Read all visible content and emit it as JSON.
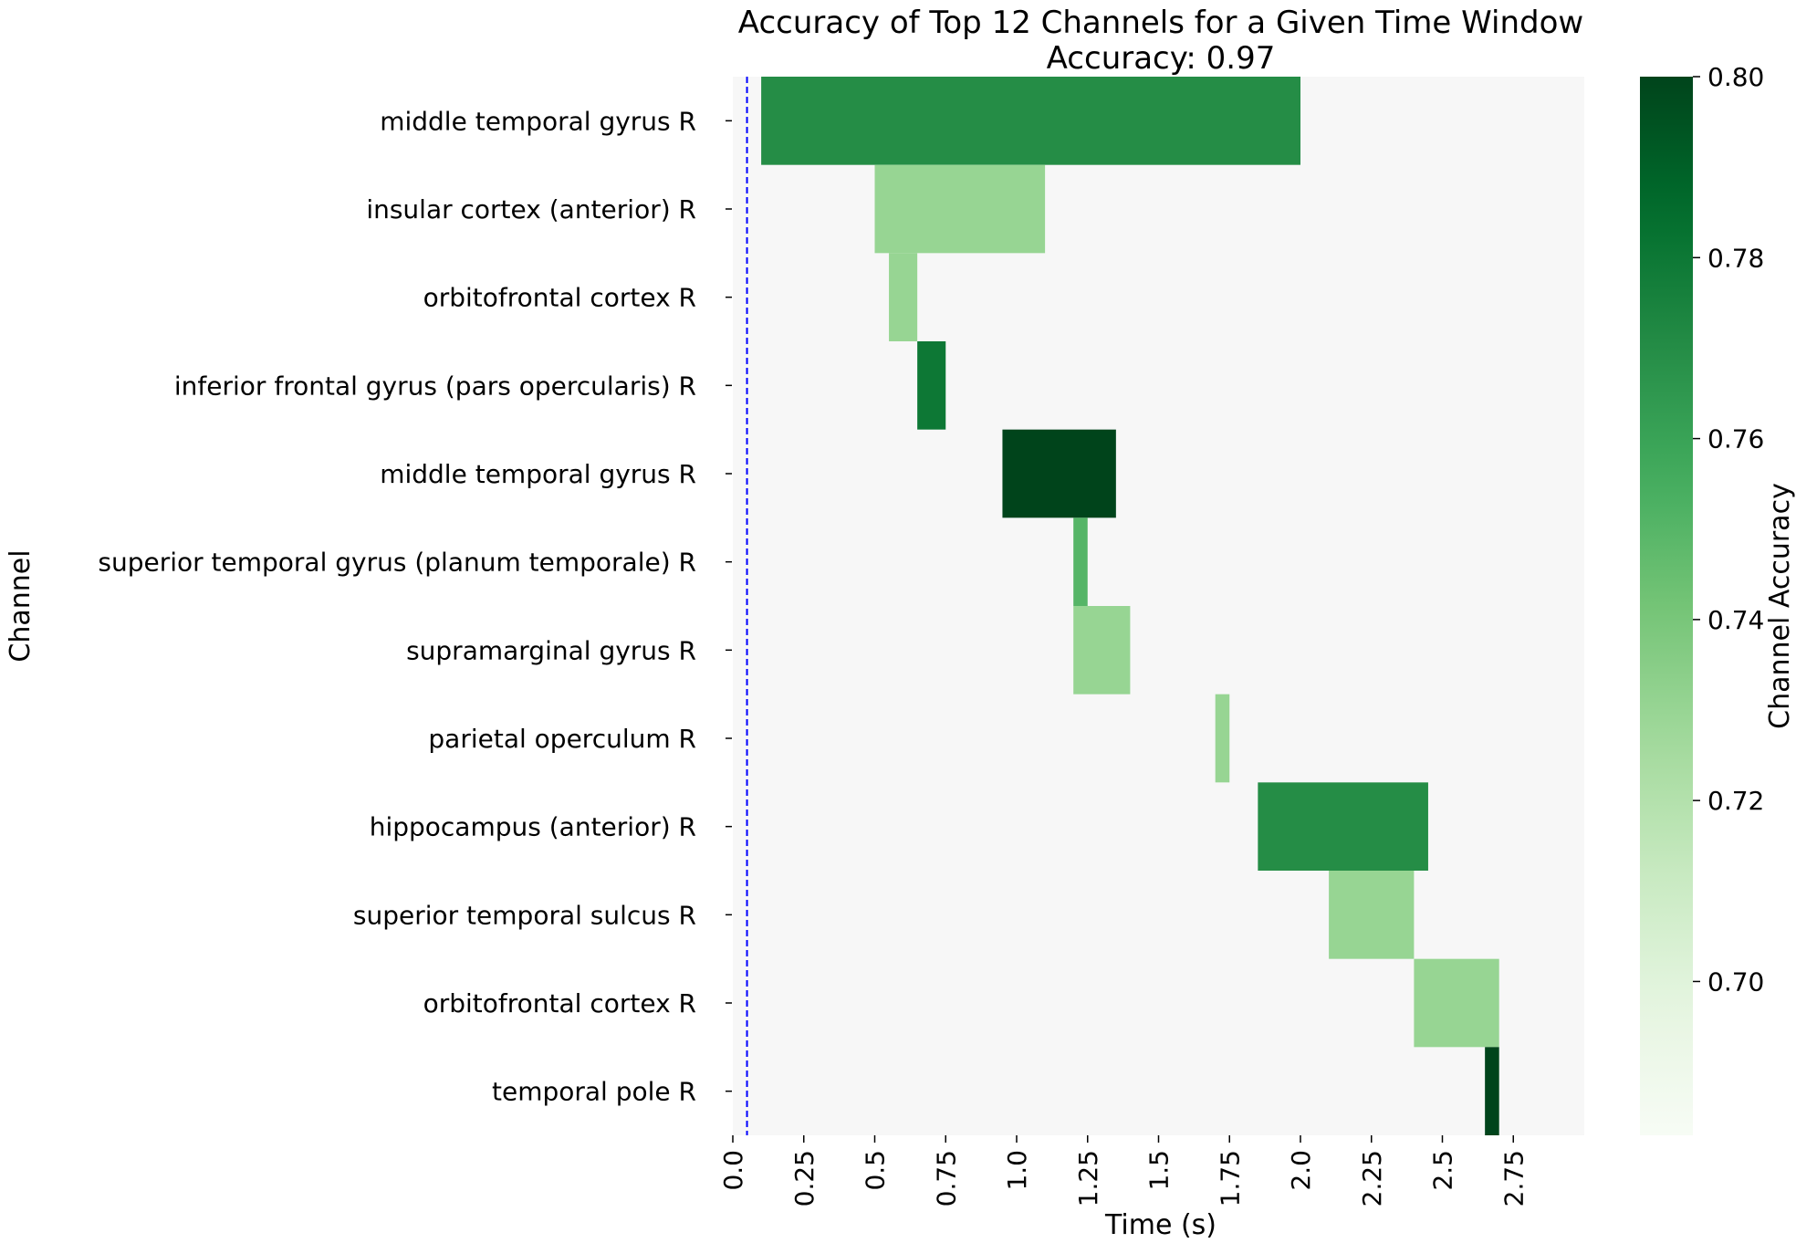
{
  "chart_data": {
    "type": "heatmap",
    "title": "Accuracy of Top 12 Channels for a Given Time Window",
    "subtitle": "Accuracy: 0.97",
    "xlabel": "Time (s)",
    "ylabel": "Channel",
    "xlim": [
      0,
      3.0
    ],
    "x_ticks": [
      "0.0",
      "0.25",
      "0.5",
      "0.75",
      "1.0",
      "1.25",
      "1.5",
      "1.75",
      "2.0",
      "2.25",
      "2.5",
      "2.75"
    ],
    "vline": 0.05,
    "vline_color": "#0000ff",
    "background_color": "#f7f7f7",
    "colorbar": {
      "label": "Channel Accuracy",
      "range": [
        0.683,
        0.8
      ],
      "ticks": [
        "0.70",
        "0.72",
        "0.74",
        "0.76",
        "0.78",
        "0.80"
      ],
      "colormap": "Greens",
      "low_color": "#f7fcf5",
      "high_color": "#00441b"
    },
    "rows": [
      {
        "channel": "middle temporal gyrus R",
        "start": 0.1,
        "end": 2.0,
        "accuracy": 0.77
      },
      {
        "channel": "insular cortex (anterior) R",
        "start": 0.5,
        "end": 1.1,
        "accuracy": 0.73
      },
      {
        "channel": "orbitofrontal cortex R",
        "start": 0.55,
        "end": 0.65,
        "accuracy": 0.73
      },
      {
        "channel": "inferior frontal gyrus (pars opercularis) R",
        "start": 0.65,
        "end": 0.75,
        "accuracy": 0.78
      },
      {
        "channel": "middle temporal gyrus R",
        "start": 0.95,
        "end": 1.35,
        "accuracy": 0.8
      },
      {
        "channel": "superior temporal gyrus (planum temporale) R",
        "start": 1.2,
        "end": 1.25,
        "accuracy": 0.75
      },
      {
        "channel": "supramarginal gyrus R",
        "start": 1.2,
        "end": 1.4,
        "accuracy": 0.73
      },
      {
        "channel": "parietal operculum R",
        "start": 1.7,
        "end": 1.75,
        "accuracy": 0.73
      },
      {
        "channel": "hippocampus (anterior) R",
        "start": 1.85,
        "end": 2.45,
        "accuracy": 0.77
      },
      {
        "channel": "superior temporal sulcus R",
        "start": 2.1,
        "end": 2.4,
        "accuracy": 0.73
      },
      {
        "channel": "orbitofrontal cortex R",
        "start": 2.4,
        "end": 2.7,
        "accuracy": 0.73
      },
      {
        "channel": "temporal pole R",
        "start": 2.65,
        "end": 2.7,
        "accuracy": 0.8
      }
    ]
  }
}
